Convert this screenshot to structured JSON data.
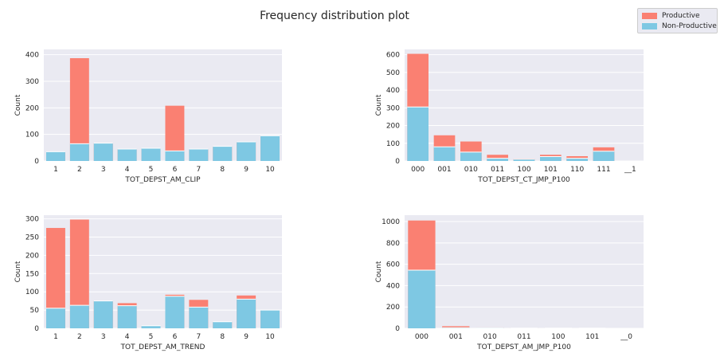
{
  "title": "Frequency distribution plot",
  "colors": {
    "productive": "#fa8072",
    "non_productive": "#7ec8e3",
    "plot_bg": "#eaeaf2",
    "grid": "#ffffff"
  },
  "chart_data": [
    {
      "type": "bar",
      "stacked": true,
      "title": "",
      "xlabel": "TOT_DEPST_AM_CLIP",
      "ylabel": "Count",
      "categories": [
        "1",
        "2",
        "3",
        "4",
        "5",
        "6",
        "7",
        "8",
        "9",
        "10"
      ],
      "yticks": [
        0,
        100,
        200,
        300,
        400
      ],
      "ylim": [
        0,
        420
      ],
      "series": [
        {
          "name": "Non-Productive",
          "values": [
            35,
            65,
            67,
            45,
            48,
            38,
            45,
            55,
            72,
            95
          ]
        },
        {
          "name": "Productive",
          "values": [
            0,
            322,
            0,
            0,
            0,
            170,
            0,
            0,
            0,
            0
          ]
        }
      ],
      "legend": "top-right",
      "grid": true
    },
    {
      "type": "bar",
      "stacked": true,
      "title": "",
      "xlabel": "TOT_DEPST_CT_JMP_P100",
      "ylabel": "Count",
      "categories": [
        "000",
        "001",
        "010",
        "011",
        "100",
        "101",
        "110",
        "111",
        "__1"
      ],
      "yticks": [
        0,
        100,
        200,
        300,
        400,
        500,
        600
      ],
      "ylim": [
        0,
        630
      ],
      "series": [
        {
          "name": "Non-Productive",
          "values": [
            305,
            80,
            50,
            15,
            10,
            25,
            15,
            55,
            0
          ]
        },
        {
          "name": "Productive",
          "values": [
            300,
            65,
            60,
            20,
            3,
            10,
            12,
            22,
            0
          ]
        }
      ],
      "grid": true
    },
    {
      "type": "bar",
      "stacked": true,
      "title": "",
      "xlabel": "TOT_DEPST_AM_TREND",
      "ylabel": "Count",
      "categories": [
        "1",
        "2",
        "3",
        "4",
        "5",
        "6",
        "7",
        "8",
        "9",
        "10"
      ],
      "yticks": [
        0,
        50,
        100,
        150,
        200,
        250,
        300
      ],
      "ylim": [
        0,
        310
      ],
      "series": [
        {
          "name": "Non-Productive",
          "values": [
            55,
            63,
            75,
            62,
            7,
            88,
            58,
            18,
            80,
            50
          ]
        },
        {
          "name": "Productive",
          "values": [
            220,
            235,
            0,
            7,
            0,
            4,
            20,
            0,
            10,
            0
          ]
        }
      ],
      "grid": true
    },
    {
      "type": "bar",
      "stacked": true,
      "title": "",
      "xlabel": "TOT_DEPST_AM_JMP_P100",
      "ylabel": "Count",
      "categories": [
        "000",
        "001",
        "010",
        "011",
        "100",
        "101",
        "__0"
      ],
      "yticks": [
        0,
        200,
        400,
        600,
        800,
        1000
      ],
      "ylim": [
        0,
        1060
      ],
      "series": [
        {
          "name": "Non-Productive",
          "values": [
            545,
            6,
            5,
            2,
            2,
            2,
            0
          ]
        },
        {
          "name": "Productive",
          "values": [
            465,
            14,
            3,
            1,
            1,
            1,
            0
          ]
        }
      ],
      "grid": true
    }
  ]
}
